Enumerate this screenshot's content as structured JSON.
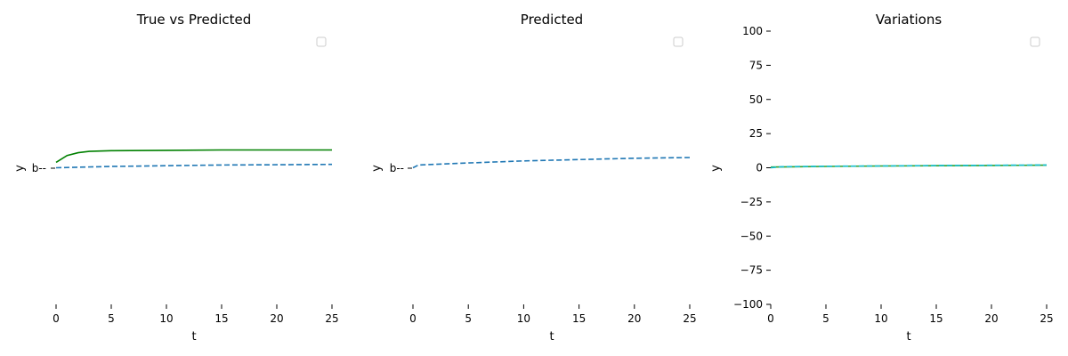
{
  "chart_data": [
    {
      "type": "line",
      "title": "True vs Predicted",
      "xlabel": "t",
      "ylabel": "y",
      "xlim": [
        0,
        25
      ],
      "xticks": [
        0,
        5,
        10,
        15,
        20,
        25
      ],
      "ytick_label": "b--",
      "legend": "top-right",
      "series": [
        {
          "color": "#008000",
          "style": "solid",
          "x": [
            0,
            1,
            2,
            3,
            5,
            10,
            15,
            20,
            25
          ],
          "y": [
            0.4,
            0.9,
            1.1,
            1.2,
            1.25,
            1.28,
            1.3,
            1.3,
            1.3
          ]
        },
        {
          "color": "#1f77b4",
          "style": "dashed",
          "x": [
            0,
            5,
            10,
            15,
            20,
            25
          ],
          "y": [
            0.0,
            0.1,
            0.15,
            0.2,
            0.22,
            0.25
          ]
        }
      ]
    },
    {
      "type": "line",
      "title": "Predicted",
      "xlabel": "t",
      "ylabel": "y",
      "xlim": [
        0,
        25
      ],
      "xticks": [
        0,
        5,
        10,
        15,
        20,
        25
      ],
      "ytick_label": "b--",
      "legend": "top-right",
      "series": [
        {
          "color": "#1f77b4",
          "style": "dashed",
          "x": [
            0,
            0.5,
            5,
            10,
            15,
            20,
            25
          ],
          "y": [
            0.0,
            0.2,
            0.35,
            0.5,
            0.6,
            0.7,
            0.75
          ]
        }
      ]
    },
    {
      "type": "line",
      "title": "Variations",
      "xlabel": "t",
      "ylabel": "y",
      "xlim": [
        0,
        25
      ],
      "ylim": [
        -100,
        100
      ],
      "xticks": [
        0,
        5,
        10,
        15,
        20,
        25
      ],
      "yticks": [
        -100,
        -75,
        -50,
        -25,
        0,
        25,
        50,
        75,
        100
      ],
      "legend": "top-right",
      "series": [
        {
          "color": "#2ca02c",
          "style": "solid",
          "x": [
            0,
            5,
            10,
            15,
            20,
            25
          ],
          "y": [
            0.5,
            1.0,
            1.3,
            1.5,
            1.7,
            1.9
          ]
        },
        {
          "color": "#17becf",
          "style": "dashed",
          "x": [
            0,
            1,
            5,
            10,
            15,
            20,
            25
          ],
          "y": [
            0.0,
            0.8,
            1.1,
            1.3,
            1.6,
            1.8,
            2.0
          ]
        }
      ]
    }
  ]
}
